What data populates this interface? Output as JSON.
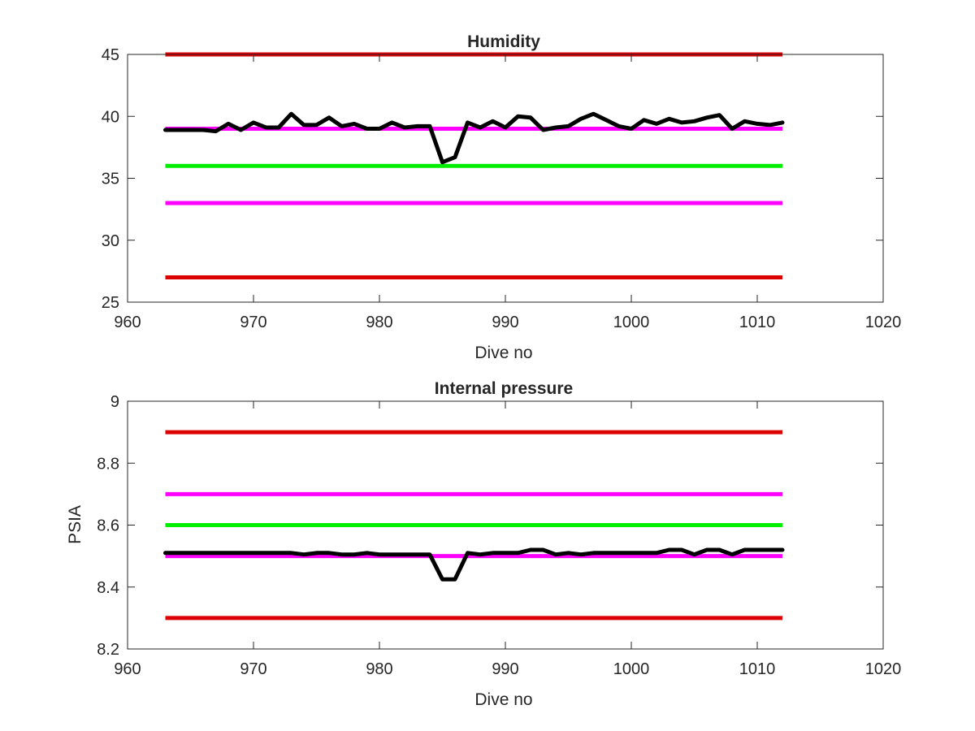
{
  "chart_data": [
    {
      "type": "line",
      "title": "Humidity",
      "xlabel": "Dive no",
      "ylabel": "",
      "xlim": [
        960,
        1020
      ],
      "ylim": [
        25,
        45
      ],
      "xticks": [
        960,
        970,
        980,
        990,
        1000,
        1010,
        1020
      ],
      "yticks": [
        25,
        30,
        35,
        40,
        45
      ],
      "xtick_labels": [
        "960",
        "970",
        "980",
        "990",
        "1000",
        "1010",
        "1020"
      ],
      "ytick_labels": [
        "25",
        "30",
        "35",
        "40",
        "45"
      ],
      "grid": false,
      "reference_lines": [
        {
          "y": 45,
          "x_range": [
            963,
            1012
          ],
          "color": "#dd0000"
        },
        {
          "y": 39,
          "x_range": [
            963,
            1012
          ],
          "color": "#ff00ff"
        },
        {
          "y": 36,
          "x_range": [
            963,
            1012
          ],
          "color": "#00ee00"
        },
        {
          "y": 33,
          "x_range": [
            963,
            1012
          ],
          "color": "#ff00ff"
        },
        {
          "y": 27,
          "x_range": [
            963,
            1012
          ],
          "color": "#dd0000"
        }
      ],
      "series": [
        {
          "color": "#000000",
          "x": [
            963,
            964,
            965,
            966,
            967,
            968,
            969,
            970,
            971,
            972,
            973,
            974,
            975,
            976,
            977,
            978,
            979,
            980,
            981,
            982,
            983,
            984,
            985,
            986,
            987,
            988,
            989,
            990,
            991,
            992,
            993,
            994,
            995,
            996,
            997,
            998,
            999,
            1000,
            1001,
            1002,
            1003,
            1004,
            1005,
            1006,
            1007,
            1008,
            1009,
            1010,
            1011,
            1012
          ],
          "y": [
            38.9,
            38.9,
            38.9,
            38.9,
            38.8,
            39.4,
            38.9,
            39.5,
            39.1,
            39.1,
            40.2,
            39.3,
            39.3,
            39.9,
            39.2,
            39.4,
            39.0,
            39.0,
            39.5,
            39.1,
            39.2,
            39.2,
            36.3,
            36.7,
            39.5,
            39.1,
            39.6,
            39.1,
            40.0,
            39.9,
            38.9,
            39.1,
            39.2,
            39.8,
            40.2,
            39.7,
            39.2,
            39.0,
            39.7,
            39.4,
            39.8,
            39.5,
            39.6,
            39.9,
            40.1,
            39.0,
            39.6,
            39.4,
            39.3,
            39.5
          ]
        }
      ]
    },
    {
      "type": "line",
      "title": "Internal pressure",
      "xlabel": "Dive no",
      "ylabel": "PSIA",
      "xlim": [
        960,
        1020
      ],
      "ylim": [
        8.2,
        9.0
      ],
      "xticks": [
        960,
        970,
        980,
        990,
        1000,
        1010,
        1020
      ],
      "yticks": [
        8.2,
        8.4,
        8.6,
        8.8,
        9.0
      ],
      "xtick_labels": [
        "960",
        "970",
        "980",
        "990",
        "1000",
        "1010",
        "1020"
      ],
      "ytick_labels": [
        "8.2",
        "8.4",
        "8.6",
        "8.8",
        "9"
      ],
      "grid": false,
      "reference_lines": [
        {
          "y": 8.9,
          "x_range": [
            963,
            1012
          ],
          "color": "#dd0000"
        },
        {
          "y": 8.7,
          "x_range": [
            963,
            1012
          ],
          "color": "#ff00ff"
        },
        {
          "y": 8.6,
          "x_range": [
            963,
            1012
          ],
          "color": "#00ee00"
        },
        {
          "y": 8.5,
          "x_range": [
            963,
            1012
          ],
          "color": "#ff00ff"
        },
        {
          "y": 8.3,
          "x_range": [
            963,
            1012
          ],
          "color": "#dd0000"
        }
      ],
      "series": [
        {
          "color": "#000000",
          "x": [
            963,
            964,
            965,
            966,
            967,
            968,
            969,
            970,
            971,
            972,
            973,
            974,
            975,
            976,
            977,
            978,
            979,
            980,
            981,
            982,
            983,
            984,
            985,
            986,
            987,
            988,
            989,
            990,
            991,
            992,
            993,
            994,
            995,
            996,
            997,
            998,
            999,
            1000,
            1001,
            1002,
            1003,
            1004,
            1005,
            1006,
            1007,
            1008,
            1009,
            1010,
            1011,
            1012
          ],
          "y": [
            8.51,
            8.51,
            8.51,
            8.51,
            8.51,
            8.51,
            8.51,
            8.51,
            8.51,
            8.51,
            8.51,
            8.505,
            8.51,
            8.51,
            8.505,
            8.505,
            8.51,
            8.505,
            8.505,
            8.505,
            8.505,
            8.505,
            8.425,
            8.425,
            8.51,
            8.505,
            8.51,
            8.51,
            8.51,
            8.52,
            8.52,
            8.505,
            8.51,
            8.505,
            8.51,
            8.51,
            8.51,
            8.51,
            8.51,
            8.51,
            8.52,
            8.52,
            8.505,
            8.52,
            8.52,
            8.505,
            8.52,
            8.52,
            8.52,
            8.52
          ]
        }
      ]
    }
  ]
}
